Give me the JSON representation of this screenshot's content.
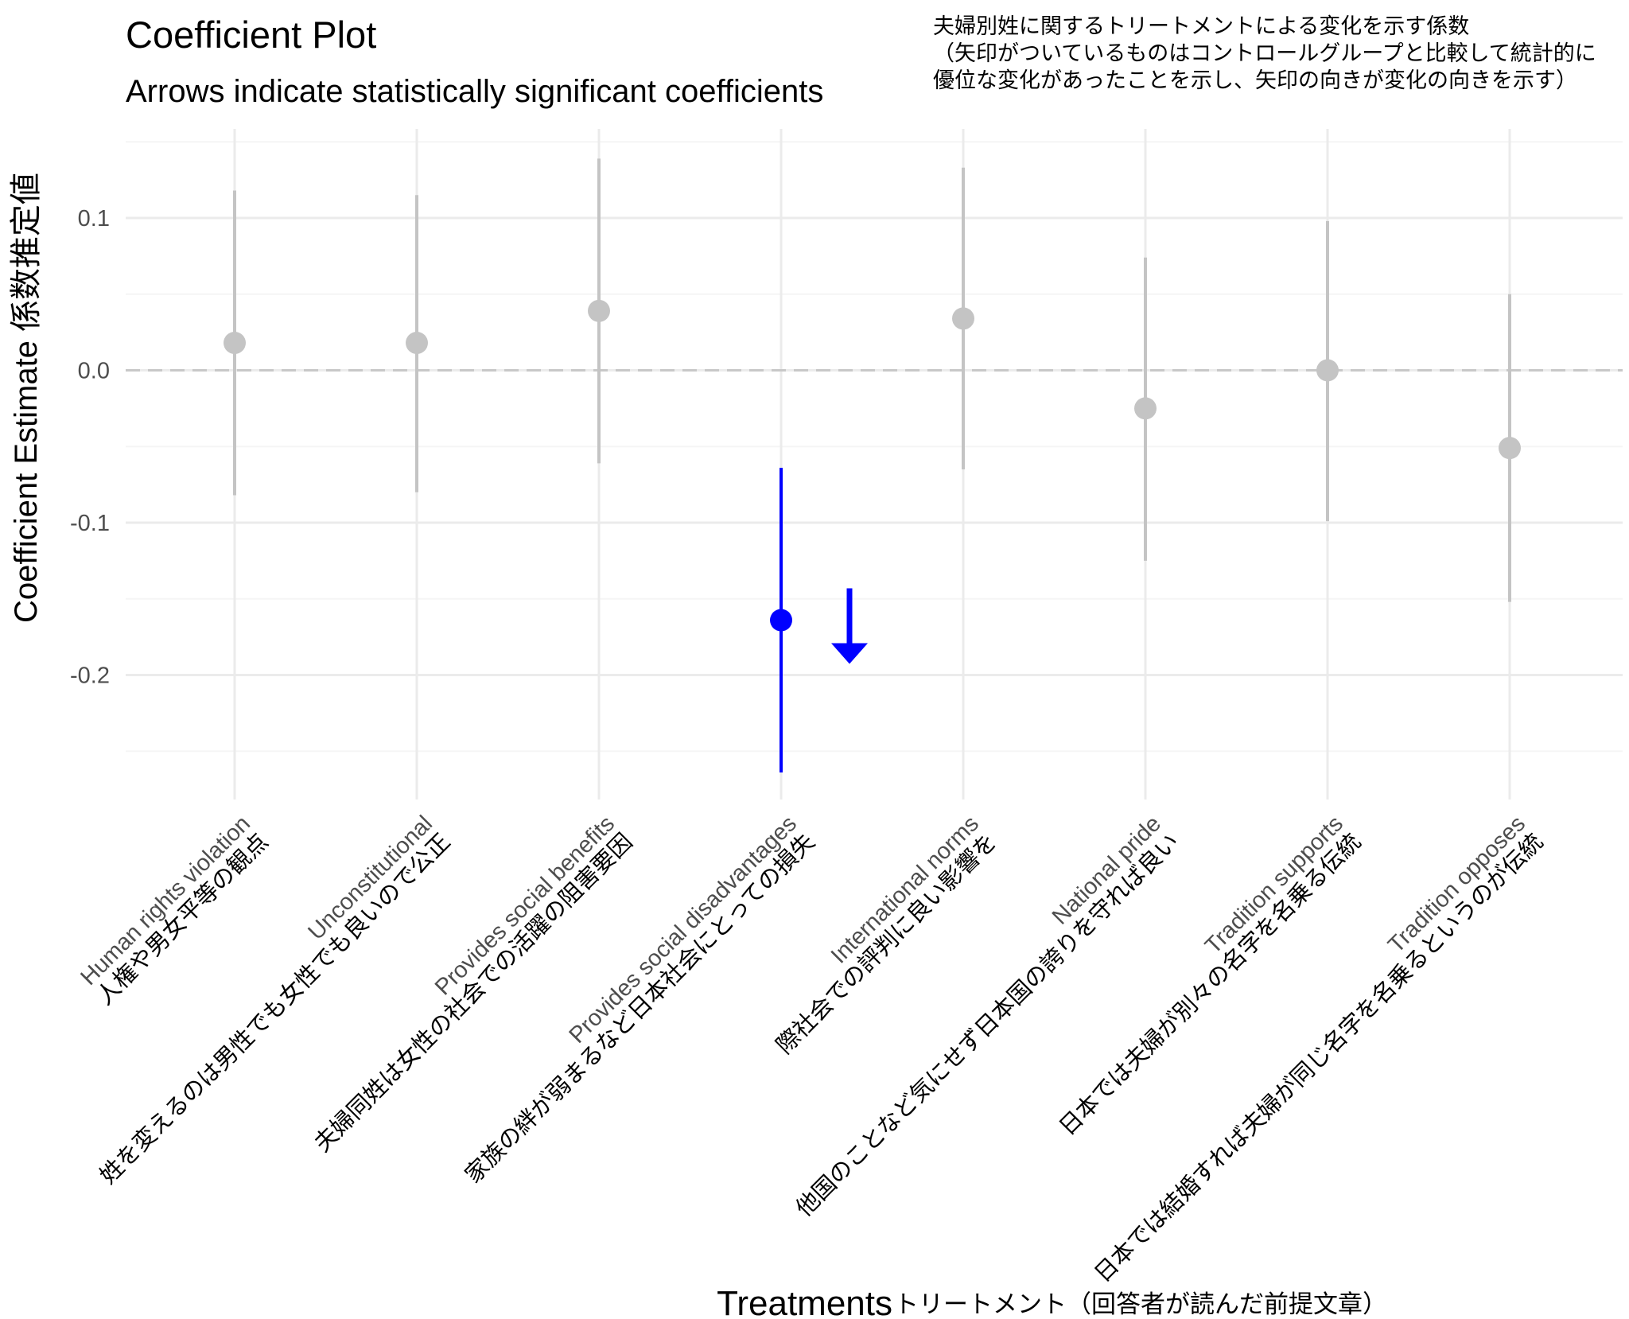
{
  "header": {
    "title": "Coefficient Plot",
    "subtitle": "Arrows indicate statistically significant coefficients",
    "caption": [
      "夫婦別姓に関するトリートメントによる変化を示す係数",
      "（矢印がついているものはコントロールグループと比較して統計的に",
      "優位な変化があったことを示し、矢印の向きが変化の向きを示す）"
    ]
  },
  "colors": {
    "background": "#ffffff",
    "grid_major": "#ebebeb",
    "grid_minor": "#f5f5f5",
    "reference_line": "#c8c8c8",
    "not_significant": "#c4c4c4",
    "significant": "#0000ff",
    "tick_text": "#4d4d4d"
  },
  "chart_data": {
    "type": "scatter",
    "subtype": "coefficient-plot-with-error-bars",
    "title": "Coefficient Plot",
    "subtitle": "Arrows indicate statistically significant coefficients",
    "ylabel": "Coefficient Estimate 係数推定値",
    "xlabel": "Treatments",
    "xlabel_jp": "トリートメント（回答者が読んだ前提文章）",
    "ylim": [
      -0.28,
      0.15
    ],
    "yticks": [
      0.1,
      0.0,
      -0.1,
      -0.2
    ],
    "ytick_labels": [
      "0.1",
      "0.0",
      "-0.1",
      "-0.2"
    ],
    "reference_line": 0,
    "reference_line_style": "dashed",
    "grid": true,
    "categories": [
      {
        "en": "Human rights violation",
        "jp": "人権や男女平等の観点"
      },
      {
        "en": "Unconstitutional",
        "jp": "姓を変えるのは男性でも女性でも良いので公正"
      },
      {
        "en": "Provides social benefits",
        "jp": "夫婦同姓は女性の社会での活躍の阻害要因"
      },
      {
        "en": "Provides social disadvantages",
        "jp": "家族の絆が弱まるなど日本社会にとっての損失"
      },
      {
        "en": "International norms",
        "jp": "際社会での評判に良い影響を"
      },
      {
        "en": "National pride",
        "jp": "他国のことなど気にせず日本国の誇りを守れば良い"
      },
      {
        "en": "Tradition supports",
        "jp": "日本では夫婦が別々の名字を名乗る伝統"
      },
      {
        "en": "Tradition opposes",
        "jp": "日本では結婚すれば夫婦が同じ名字を名乗るというのが伝統"
      }
    ],
    "series": [
      {
        "estimates": [
          0.018,
          0.018,
          0.039,
          -0.164,
          0.034,
          -0.025,
          0.0,
          -0.051
        ],
        "ci_low": [
          -0.082,
          -0.08,
          -0.061,
          -0.264,
          -0.065,
          -0.125,
          -0.099,
          -0.152
        ],
        "ci_high": [
          0.118,
          0.115,
          0.139,
          -0.064,
          0.133,
          0.074,
          0.098,
          0.05
        ],
        "significant": [
          false,
          false,
          false,
          true,
          false,
          false,
          false,
          false
        ],
        "arrow_direction": [
          "",
          "",
          "",
          "down",
          "",
          "",
          "",
          ""
        ]
      }
    ]
  }
}
